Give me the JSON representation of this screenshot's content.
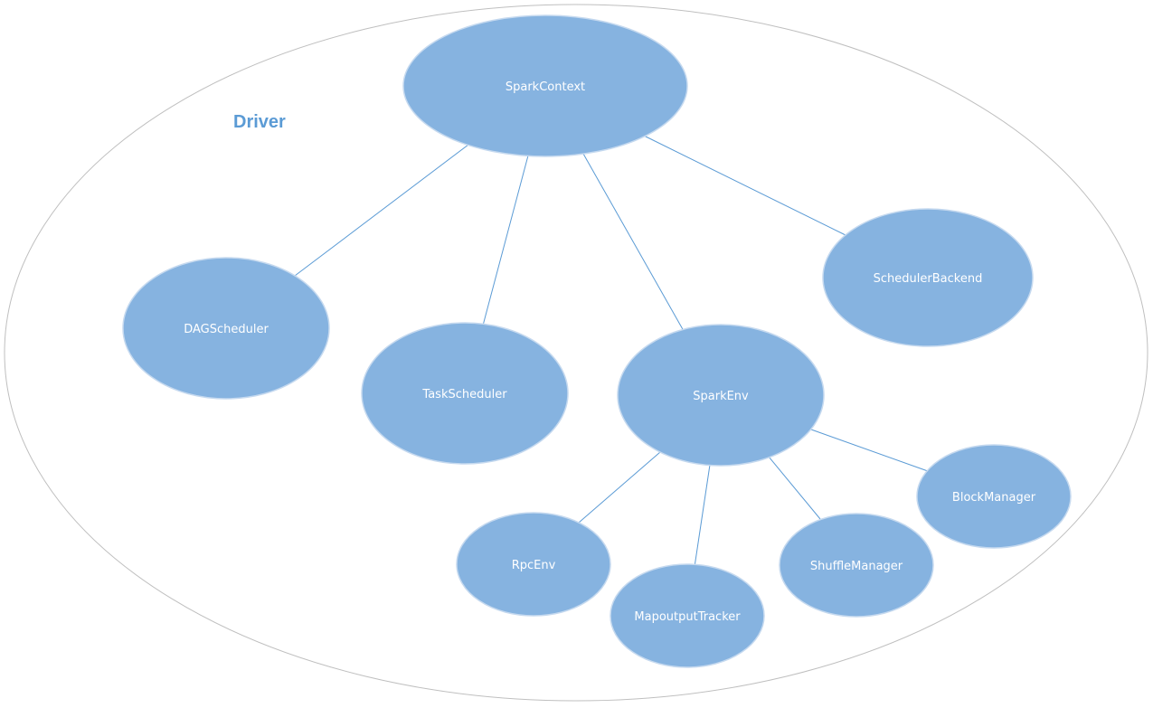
{
  "diagram": {
    "title": "Driver",
    "colors": {
      "node_fill": "#86b3e0",
      "node_stroke": "#c5d9ef",
      "edge": "#5b9bd5",
      "outline": "#bfbfbf",
      "title": "#5b9bd5"
    },
    "nodes": {
      "sparkcontext": "SparkContext",
      "dagscheduler": "DAGScheduler",
      "taskscheduler": "TaskScheduler",
      "sparkenv": "SparkEnv",
      "schedulerbackend": "SchedulerBackend",
      "rpcenv": "RpcEnv",
      "mapoutputtracker": "MapoutputTracker",
      "shufflemanager": "ShuffleManager",
      "blockmanager": "BlockManager"
    },
    "edges": [
      [
        "sparkcontext",
        "dagscheduler"
      ],
      [
        "sparkcontext",
        "taskscheduler"
      ],
      [
        "sparkcontext",
        "sparkenv"
      ],
      [
        "sparkcontext",
        "schedulerbackend"
      ],
      [
        "sparkenv",
        "rpcenv"
      ],
      [
        "sparkenv",
        "mapoutputtracker"
      ],
      [
        "sparkenv",
        "shufflemanager"
      ],
      [
        "sparkenv",
        "blockmanager"
      ]
    ]
  }
}
